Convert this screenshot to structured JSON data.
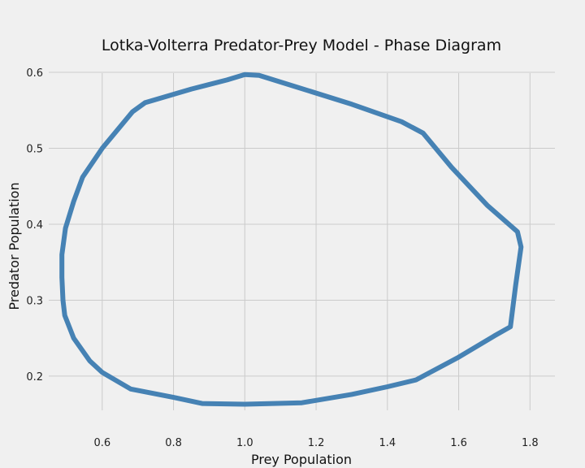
{
  "chart_data": {
    "type": "line",
    "title": "Lotka-Volterra Predator-Prey Model - Phase Diagram",
    "xlabel": "Prey Population",
    "ylabel": "Predator Population",
    "xlim": [
      0.45,
      1.87
    ],
    "ylim": [
      0.155,
      0.615
    ],
    "xticks": [
      0.6,
      0.8,
      1.0,
      1.2,
      1.4,
      1.6,
      1.8
    ],
    "yticks": [
      0.2,
      0.3,
      0.4,
      0.5,
      0.6
    ],
    "xtick_labels": [
      "0.6",
      "0.8",
      "1.0",
      "1.2",
      "1.4",
      "1.6",
      "1.8"
    ],
    "ytick_labels": [
      "0.2",
      "0.3",
      "0.4",
      "0.5",
      "0.6"
    ],
    "grid": true,
    "colors": {
      "line": "#4682b4",
      "background": "#f0f0f0",
      "grid": "#cbcbcb"
    },
    "series": [
      {
        "points": [
          {
            "x": 1.0,
            "y": 0.597
          },
          {
            "x": 1.04,
            "y": 0.596
          },
          {
            "x": 1.15,
            "y": 0.58
          },
          {
            "x": 1.3,
            "y": 0.558
          },
          {
            "x": 1.44,
            "y": 0.535
          },
          {
            "x": 1.5,
            "y": 0.52
          },
          {
            "x": 1.58,
            "y": 0.475
          },
          {
            "x": 1.68,
            "y": 0.425
          },
          {
            "x": 1.765,
            "y": 0.39
          },
          {
            "x": 1.775,
            "y": 0.37
          },
          {
            "x": 1.76,
            "y": 0.32
          },
          {
            "x": 1.745,
            "y": 0.265
          },
          {
            "x": 1.7,
            "y": 0.253
          },
          {
            "x": 1.6,
            "y": 0.225
          },
          {
            "x": 1.48,
            "y": 0.195
          },
          {
            "x": 1.4,
            "y": 0.186
          },
          {
            "x": 1.3,
            "y": 0.176
          },
          {
            "x": 1.16,
            "y": 0.165
          },
          {
            "x": 1.0,
            "y": 0.163
          },
          {
            "x": 0.88,
            "y": 0.164
          },
          {
            "x": 0.8,
            "y": 0.172
          },
          {
            "x": 0.68,
            "y": 0.183
          },
          {
            "x": 0.6,
            "y": 0.205
          },
          {
            "x": 0.565,
            "y": 0.22
          },
          {
            "x": 0.52,
            "y": 0.25
          },
          {
            "x": 0.495,
            "y": 0.28
          },
          {
            "x": 0.49,
            "y": 0.3
          },
          {
            "x": 0.487,
            "y": 0.33
          },
          {
            "x": 0.487,
            "y": 0.36
          },
          {
            "x": 0.497,
            "y": 0.395
          },
          {
            "x": 0.52,
            "y": 0.43
          },
          {
            "x": 0.545,
            "y": 0.462
          },
          {
            "x": 0.6,
            "y": 0.5
          },
          {
            "x": 0.685,
            "y": 0.548
          },
          {
            "x": 0.72,
            "y": 0.56
          },
          {
            "x": 0.85,
            "y": 0.578
          },
          {
            "x": 0.95,
            "y": 0.59
          },
          {
            "x": 1.0,
            "y": 0.597
          }
        ]
      }
    ]
  }
}
